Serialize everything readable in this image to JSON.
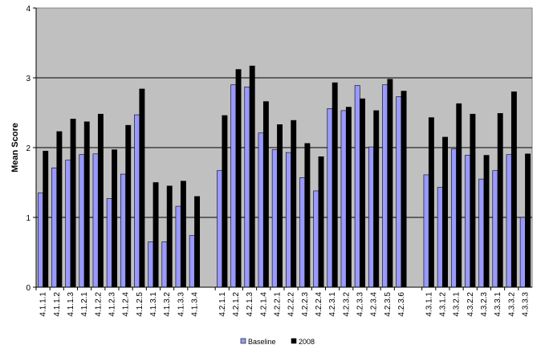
{
  "chart_data": {
    "type": "bar",
    "title": "",
    "xlabel": "",
    "ylabel": "Mean Score",
    "ylim": [
      0,
      4
    ],
    "yticks": [
      0,
      1,
      2,
      3,
      4
    ],
    "grid": true,
    "plot_background": "#c0c0c0",
    "legend_position": "bottom",
    "groups": [
      {
        "categories": [
          "4.1.1.1",
          "4.1.1.2",
          "4.1.1.3",
          "4.1.2.1",
          "4.1.2.2",
          "4.1.2.3",
          "4.1.2.4",
          "4.1.2.5",
          "4.1.3.1",
          "4.1.3.2",
          "4.1.3.3",
          "4.1.3.4"
        ]
      },
      {
        "categories": [
          "4.2.1.1",
          "4.2.1.2",
          "4.2.1.3",
          "4.2.1.4",
          "4.2.2.1",
          "4.2.2.2",
          "4.2.2.3",
          "4.2.2.4",
          "4.2.3.1",
          "4.2.3.2",
          "4.2.3.3",
          "4.2.3.4",
          "4.2.3.5",
          "4.2.3.6"
        ]
      },
      {
        "categories": [
          "4.3.1.1",
          "4.3.1.2",
          "4.3.2.1",
          "4.3.2.2",
          "4.3.2.3",
          "4.3.3.1",
          "4.3.3.2",
          "4.3.3.3"
        ]
      }
    ],
    "categories": [
      "4.1.1.1",
      "4.1.1.2",
      "4.1.1.3",
      "4.1.2.1",
      "4.1.2.2",
      "4.1.2.3",
      "4.1.2.4",
      "4.1.2.5",
      "4.1.3.1",
      "4.1.3.2",
      "4.1.3.3",
      "4.1.3.4",
      "4.2.1.1",
      "4.2.1.2",
      "4.2.1.3",
      "4.2.1.4",
      "4.2.2.1",
      "4.2.2.2",
      "4.2.2.3",
      "4.2.2.4",
      "4.2.3.1",
      "4.2.3.2",
      "4.2.3.3",
      "4.2.3.4",
      "4.2.3.5",
      "4.2.3.6",
      "4.3.1.1",
      "4.3.1.2",
      "4.3.2.1",
      "4.3.2.2",
      "4.3.2.3",
      "4.3.3.1",
      "4.3.3.2",
      "4.3.3.3"
    ],
    "series": [
      {
        "name": "Baseline",
        "color": "#9999ff",
        "values": [
          1.35,
          1.71,
          1.82,
          1.9,
          1.91,
          1.27,
          1.62,
          2.47,
          0.65,
          0.65,
          1.16,
          0.74,
          1.67,
          2.9,
          2.87,
          2.21,
          1.97,
          1.93,
          1.57,
          1.38,
          2.56,
          2.53,
          2.89,
          2.01,
          2.9,
          2.73,
          1.61,
          1.43,
          1.98,
          1.89,
          1.55,
          1.67,
          1.9,
          1.0
        ]
      },
      {
        "name": "2008",
        "color": "#000000",
        "values": [
          1.95,
          2.23,
          2.41,
          2.37,
          2.48,
          1.97,
          2.32,
          2.84,
          1.5,
          1.45,
          1.52,
          1.3,
          2.46,
          3.12,
          3.17,
          2.66,
          2.33,
          2.39,
          2.06,
          1.87,
          2.93,
          2.58,
          2.7,
          2.53,
          2.98,
          2.81,
          2.43,
          2.15,
          2.63,
          2.48,
          1.89,
          2.49,
          2.8,
          1.91
        ]
      }
    ]
  }
}
